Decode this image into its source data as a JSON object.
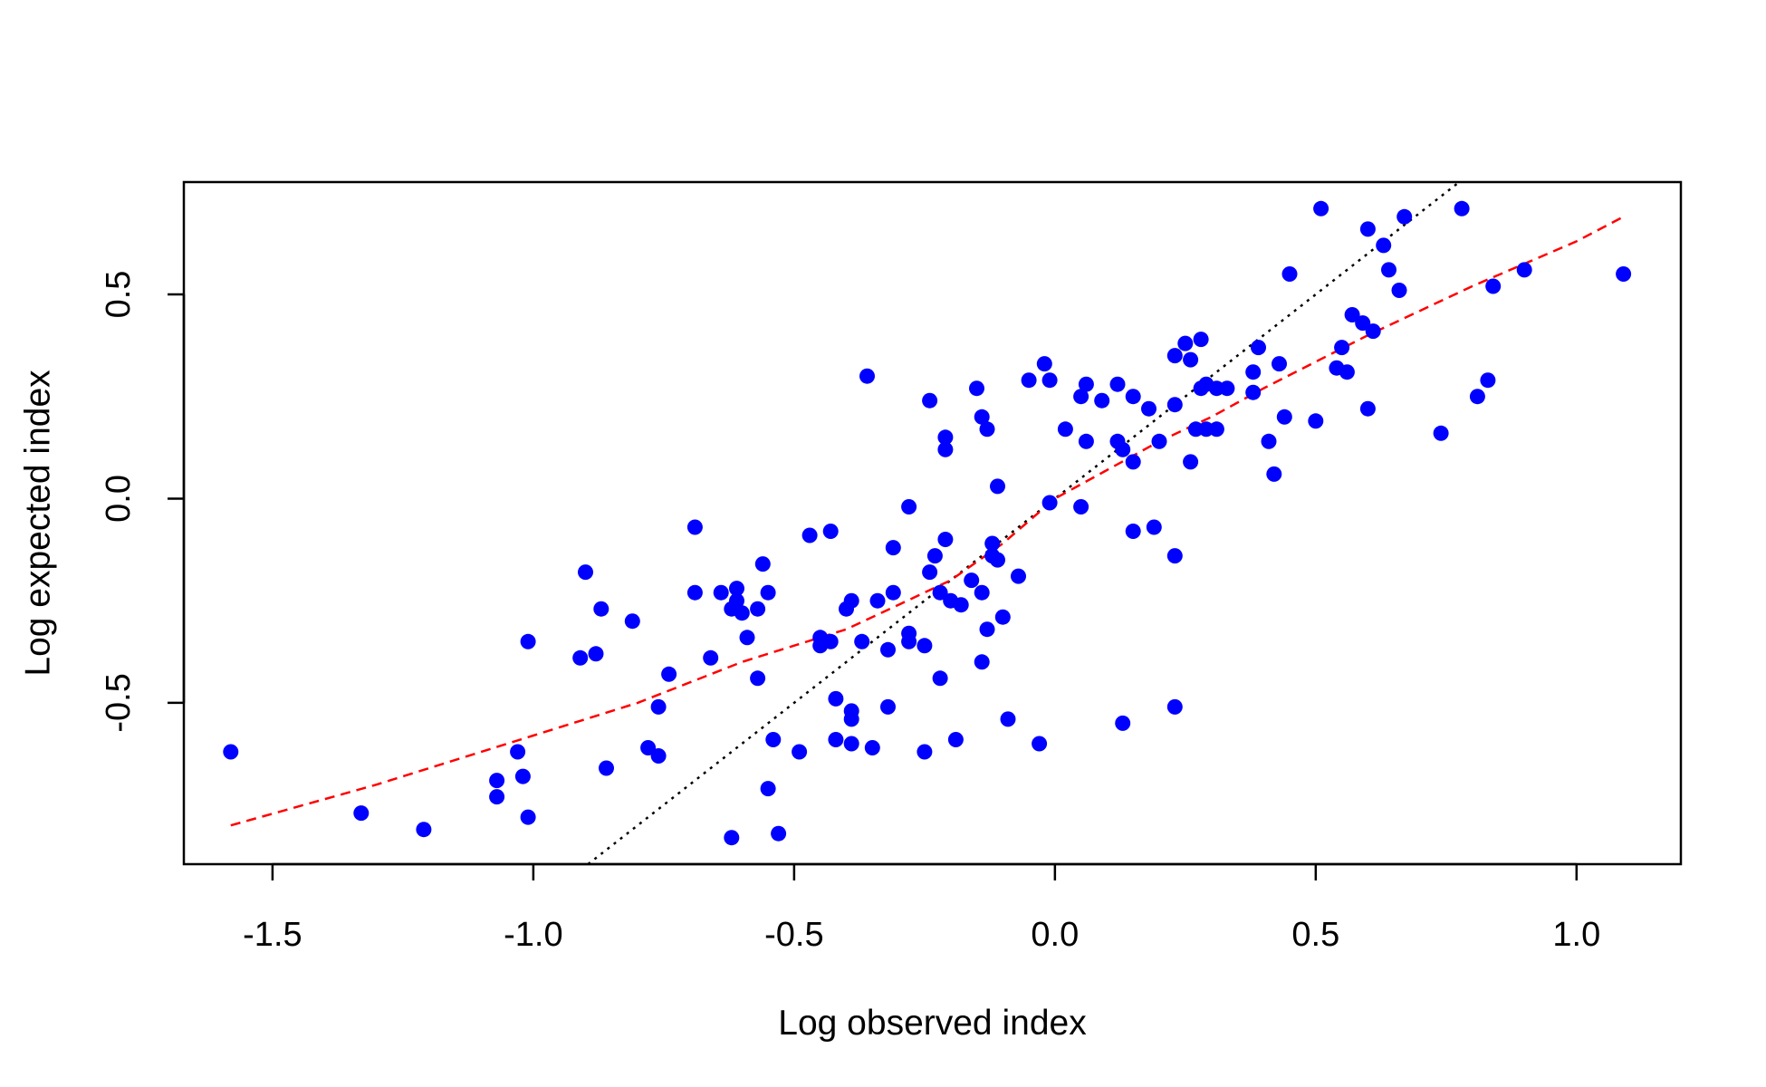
{
  "chart_data": {
    "type": "scatter",
    "xlabel": "Log observed index",
    "ylabel": "Log expected index",
    "xlim": [
      -1.67,
      1.2
    ],
    "ylim": [
      -0.895,
      0.775
    ],
    "xticks": [
      -1.5,
      -1.0,
      -0.5,
      0.0,
      0.5,
      1.0
    ],
    "xtick_labels": [
      "-1.5",
      "-1.0",
      "-0.5",
      "0.0",
      "0.5",
      "1.0"
    ],
    "yticks": [
      -0.5,
      0.0,
      0.5
    ],
    "ytick_labels": [
      "-0.5",
      "0.0",
      "0.5"
    ],
    "grid": false,
    "colors": {
      "points": "#0000FF",
      "smooth": "#FF0000",
      "identity": "#000000"
    },
    "points": [
      [
        -1.58,
        -0.62
      ],
      [
        -1.33,
        -0.77
      ],
      [
        -1.21,
        -0.81
      ],
      [
        -1.07,
        -0.69
      ],
      [
        -1.07,
        -0.73
      ],
      [
        -1.03,
        -0.62
      ],
      [
        -1.02,
        -0.68
      ],
      [
        -1.01,
        -0.78
      ],
      [
        -1.01,
        -0.35
      ],
      [
        -0.91,
        -0.39
      ],
      [
        -0.9,
        -0.18
      ],
      [
        -0.88,
        -0.38
      ],
      [
        -0.87,
        -0.27
      ],
      [
        -0.86,
        -0.66
      ],
      [
        -0.81,
        -0.3
      ],
      [
        -0.78,
        -0.61
      ],
      [
        -0.76,
        -0.51
      ],
      [
        -0.76,
        -0.63
      ],
      [
        -0.74,
        -0.43
      ],
      [
        -0.69,
        -0.07
      ],
      [
        -0.69,
        -0.23
      ],
      [
        -0.66,
        -0.39
      ],
      [
        -0.64,
        -0.23
      ],
      [
        -0.62,
        -0.27
      ],
      [
        -0.62,
        -0.83
      ],
      [
        -0.61,
        -0.22
      ],
      [
        -0.61,
        -0.25
      ],
      [
        -0.6,
        -0.28
      ],
      [
        -0.59,
        -0.34
      ],
      [
        -0.57,
        -0.27
      ],
      [
        -0.57,
        -0.44
      ],
      [
        -0.56,
        -0.16
      ],
      [
        -0.55,
        -0.23
      ],
      [
        -0.55,
        -0.71
      ],
      [
        -0.54,
        -0.59
      ],
      [
        -0.53,
        -0.82
      ],
      [
        -0.49,
        -0.62
      ],
      [
        -0.47,
        -0.09
      ],
      [
        -0.45,
        -0.36
      ],
      [
        -0.45,
        -0.34
      ],
      [
        -0.43,
        -0.08
      ],
      [
        -0.43,
        -0.35
      ],
      [
        -0.42,
        -0.49
      ],
      [
        -0.42,
        -0.59
      ],
      [
        -0.4,
        -0.27
      ],
      [
        -0.39,
        -0.25
      ],
      [
        -0.39,
        -0.52
      ],
      [
        -0.39,
        -0.54
      ],
      [
        -0.39,
        -0.6
      ],
      [
        -0.37,
        -0.35
      ],
      [
        -0.36,
        0.3
      ],
      [
        -0.35,
        -0.61
      ],
      [
        -0.34,
        -0.25
      ],
      [
        -0.32,
        -0.37
      ],
      [
        -0.32,
        -0.51
      ],
      [
        -0.31,
        -0.12
      ],
      [
        -0.31,
        -0.23
      ],
      [
        -0.28,
        -0.02
      ],
      [
        -0.28,
        -0.33
      ],
      [
        -0.28,
        -0.35
      ],
      [
        -0.25,
        -0.62
      ],
      [
        -0.25,
        -0.36
      ],
      [
        -0.24,
        0.24
      ],
      [
        -0.24,
        -0.18
      ],
      [
        -0.23,
        -0.14
      ],
      [
        -0.22,
        -0.23
      ],
      [
        -0.22,
        -0.44
      ],
      [
        -0.21,
        0.15
      ],
      [
        -0.21,
        0.12
      ],
      [
        -0.21,
        -0.1
      ],
      [
        -0.2,
        -0.25
      ],
      [
        -0.19,
        -0.59
      ],
      [
        -0.18,
        -0.26
      ],
      [
        -0.16,
        -0.2
      ],
      [
        -0.15,
        0.27
      ],
      [
        -0.14,
        0.2
      ],
      [
        -0.14,
        -0.23
      ],
      [
        -0.14,
        -0.4
      ],
      [
        -0.13,
        0.17
      ],
      [
        -0.13,
        -0.32
      ],
      [
        -0.12,
        -0.11
      ],
      [
        -0.12,
        -0.14
      ],
      [
        -0.11,
        0.03
      ],
      [
        -0.11,
        -0.15
      ],
      [
        -0.1,
        -0.29
      ],
      [
        -0.09,
        -0.54
      ],
      [
        -0.07,
        -0.19
      ],
      [
        -0.05,
        0.29
      ],
      [
        -0.03,
        -0.6
      ],
      [
        -0.02,
        0.33
      ],
      [
        -0.01,
        0.29
      ],
      [
        -0.01,
        -0.01
      ],
      [
        0.02,
        0.17
      ],
      [
        0.05,
        -0.02
      ],
      [
        0.05,
        0.25
      ],
      [
        0.06,
        0.14
      ],
      [
        0.06,
        0.28
      ],
      [
        0.09,
        0.24
      ],
      [
        0.12,
        0.28
      ],
      [
        0.12,
        0.14
      ],
      [
        0.13,
        -0.55
      ],
      [
        0.13,
        0.12
      ],
      [
        0.15,
        0.25
      ],
      [
        0.15,
        0.09
      ],
      [
        0.15,
        -0.08
      ],
      [
        0.18,
        0.22
      ],
      [
        0.19,
        -0.07
      ],
      [
        0.2,
        0.14
      ],
      [
        0.23,
        0.35
      ],
      [
        0.23,
        0.23
      ],
      [
        0.23,
        -0.14
      ],
      [
        0.23,
        -0.51
      ],
      [
        0.25,
        0.38
      ],
      [
        0.26,
        0.09
      ],
      [
        0.26,
        0.34
      ],
      [
        0.27,
        0.17
      ],
      [
        0.28,
        0.39
      ],
      [
        0.28,
        0.27
      ],
      [
        0.29,
        0.17
      ],
      [
        0.29,
        0.28
      ],
      [
        0.31,
        0.27
      ],
      [
        0.31,
        0.17
      ],
      [
        0.33,
        0.27
      ],
      [
        0.38,
        0.31
      ],
      [
        0.38,
        0.26
      ],
      [
        0.39,
        0.37
      ],
      [
        0.41,
        0.14
      ],
      [
        0.42,
        0.06
      ],
      [
        0.43,
        0.33
      ],
      [
        0.44,
        0.2
      ],
      [
        0.45,
        0.55
      ],
      [
        0.5,
        0.19
      ],
      [
        0.51,
        0.71
      ],
      [
        0.54,
        0.32
      ],
      [
        0.55,
        0.37
      ],
      [
        0.56,
        0.31
      ],
      [
        0.57,
        0.45
      ],
      [
        0.59,
        0.43
      ],
      [
        0.6,
        0.22
      ],
      [
        0.6,
        0.66
      ],
      [
        0.61,
        0.41
      ],
      [
        0.63,
        0.62
      ],
      [
        0.64,
        0.56
      ],
      [
        0.66,
        0.51
      ],
      [
        0.67,
        0.69
      ],
      [
        0.74,
        0.16
      ],
      [
        0.78,
        0.71
      ],
      [
        0.81,
        0.25
      ],
      [
        0.83,
        0.29
      ],
      [
        0.84,
        0.52
      ],
      [
        0.9,
        0.56
      ],
      [
        1.09,
        0.55
      ]
    ],
    "smooth_line": [
      [
        -1.58,
        -0.8
      ],
      [
        -1.3,
        -0.7
      ],
      [
        -1.0,
        -0.58
      ],
      [
        -0.8,
        -0.5
      ],
      [
        -0.6,
        -0.4
      ],
      [
        -0.4,
        -0.32
      ],
      [
        -0.3,
        -0.26
      ],
      [
        -0.2,
        -0.2
      ],
      [
        -0.1,
        -0.11
      ],
      [
        0.0,
        0.0
      ],
      [
        0.1,
        0.07
      ],
      [
        0.2,
        0.14
      ],
      [
        0.3,
        0.2
      ],
      [
        0.4,
        0.27
      ],
      [
        0.6,
        0.4
      ],
      [
        0.8,
        0.52
      ],
      [
        1.0,
        0.63
      ],
      [
        1.09,
        0.69
      ]
    ],
    "identity_line": [
      [
        -0.895,
        -0.895
      ],
      [
        0.775,
        0.775
      ]
    ]
  }
}
